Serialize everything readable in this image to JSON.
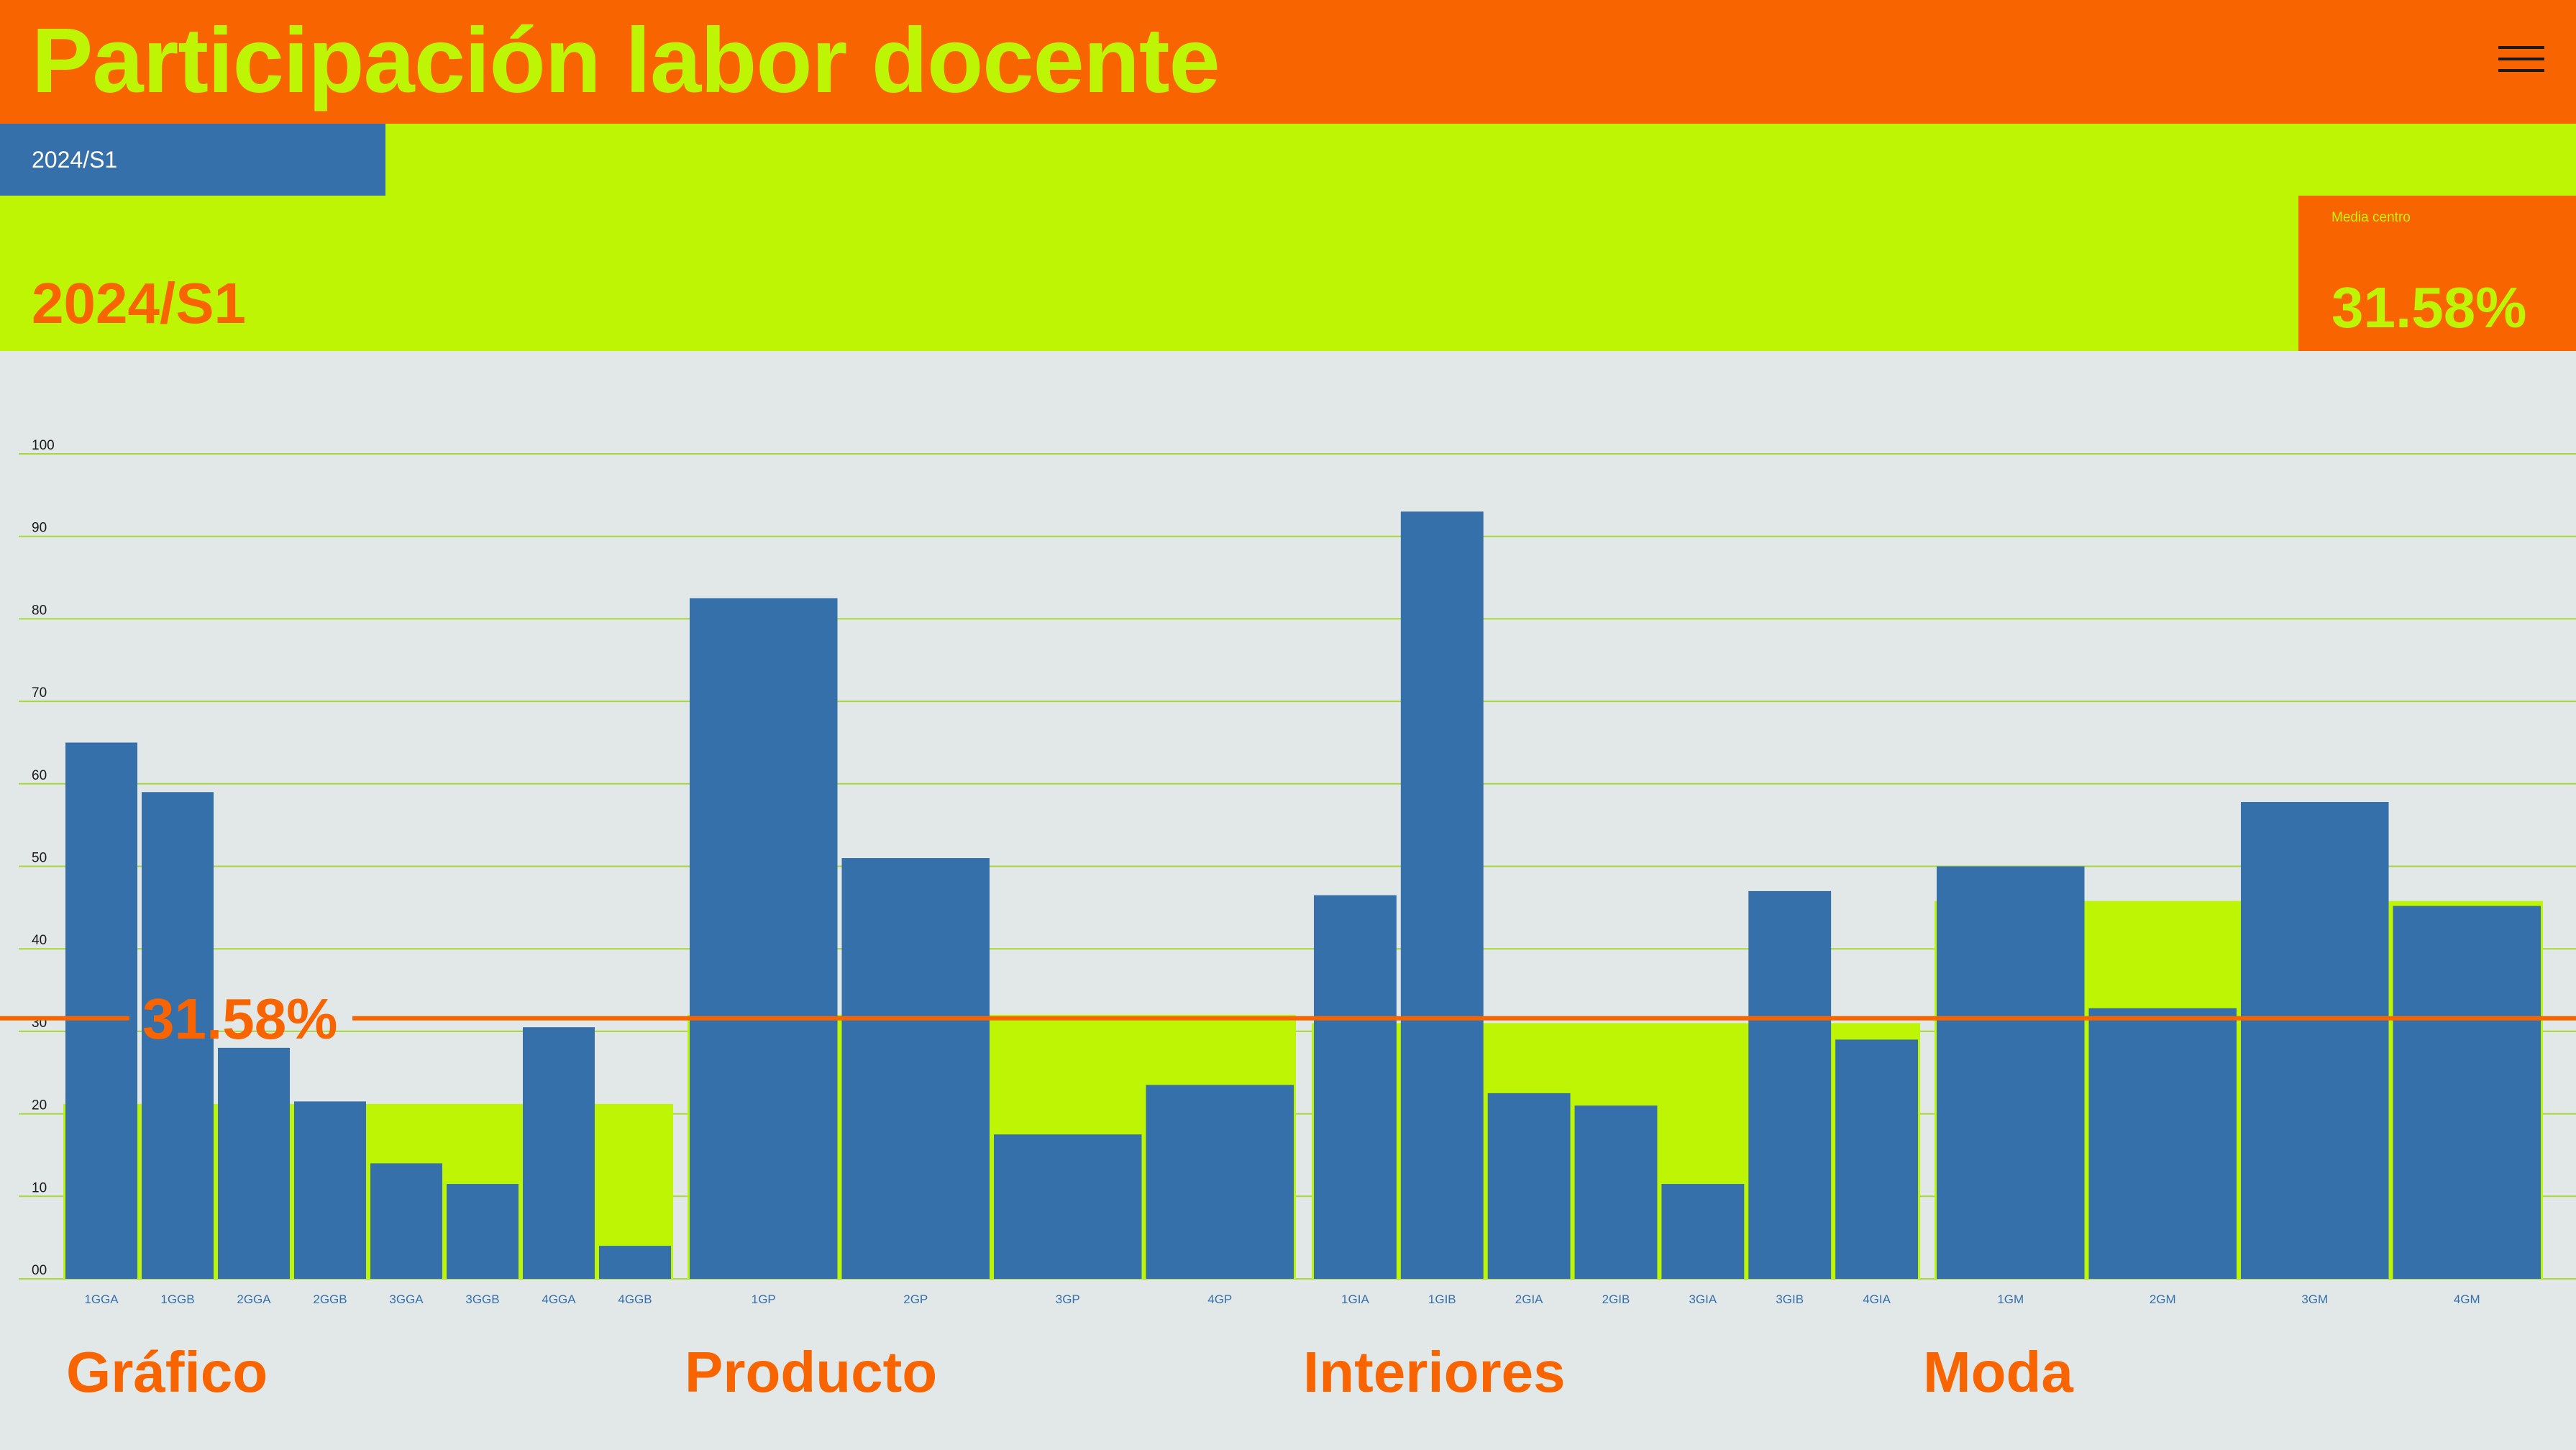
{
  "header": {
    "title": "Participación labor docente",
    "menu_icon": "hamburger-menu-icon"
  },
  "tabs": [
    {
      "label": "2024/S1",
      "selected": true
    }
  ],
  "summary": {
    "period": "2024/S1",
    "media_label": "Media centro",
    "media_value": "31.58%"
  },
  "colors": {
    "orange": "#f86400",
    "lime": "#bdf505",
    "blue": "#3670ab",
    "background": "#e2e8e8"
  },
  "chart_data": {
    "type": "bar",
    "title": "",
    "xlabel": "",
    "ylabel": "",
    "ylim": [
      0,
      100
    ],
    "yticks": [
      "00",
      "10",
      "20",
      "30",
      "40",
      "50",
      "60",
      "70",
      "80",
      "90",
      "100"
    ],
    "grid": true,
    "reference_line": {
      "value": 31.58,
      "label": "31.58%"
    },
    "groups": [
      {
        "name": "Gráfico",
        "average": 21.2,
        "categories": [
          "1GGA",
          "1GGB",
          "2GGA",
          "2GGB",
          "3GGA",
          "3GGB",
          "4GGA",
          "4GGB"
        ],
        "values": [
          65.0,
          59.0,
          28.0,
          21.5,
          14.0,
          11.5,
          30.5,
          4.0
        ]
      },
      {
        "name": "Producto",
        "average": 32.0,
        "categories": [
          "1GP",
          "2GP",
          "3GP",
          "4GP"
        ],
        "values": [
          82.5,
          51.0,
          17.5,
          23.5
        ]
      },
      {
        "name": "Interiores",
        "average": 31.0,
        "categories": [
          "1GIA",
          "1GIB",
          "2GIA",
          "2GIB",
          "3GIA",
          "3GIB",
          "4GIA"
        ],
        "values": [
          46.5,
          93.0,
          22.5,
          21.0,
          11.5,
          47.0,
          29.0
        ]
      },
      {
        "name": "Moda",
        "average": 45.8,
        "categories": [
          "1GM",
          "2GM",
          "3GM",
          "4GM"
        ],
        "values": [
          50.0,
          32.8,
          57.8,
          45.2
        ]
      }
    ]
  }
}
